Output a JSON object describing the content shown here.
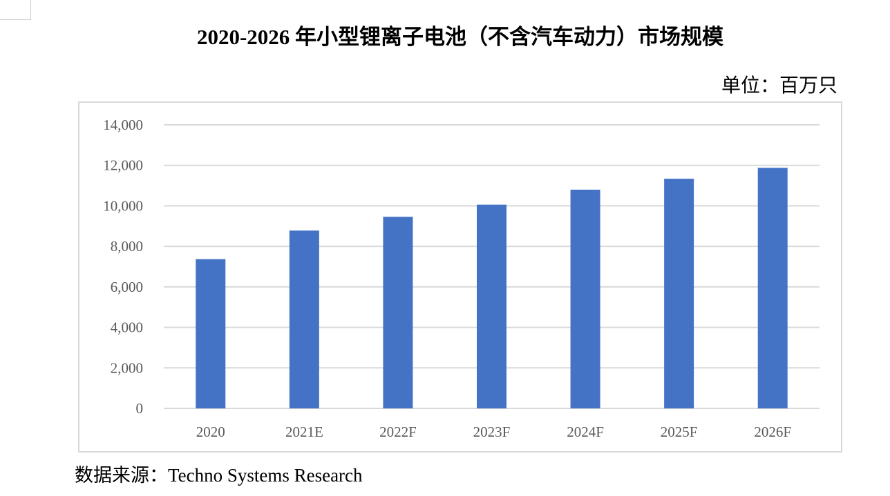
{
  "chart_data": {
    "type": "bar",
    "title": "2020-2026 年小型锂离子电池（不含汽车动力）市场规模",
    "unit_label": "单位：百万只",
    "categories": [
      "2020",
      "2021E",
      "2022F",
      "2023F",
      "2024F",
      "2025F",
      "2026F"
    ],
    "values": [
      7370,
      8780,
      9460,
      10060,
      10800,
      11340,
      11880
    ],
    "ylim": [
      0,
      14000
    ],
    "yticks": [
      0,
      2000,
      4000,
      6000,
      8000,
      10000,
      12000,
      14000
    ],
    "ytick_labels": [
      "0",
      "2,000",
      "4,000",
      "6,000",
      "8,000",
      "10,000",
      "12,000",
      "14,000"
    ],
    "grid": true,
    "xlabel": "",
    "ylabel": "",
    "bar_color": "#4472C4",
    "source": "数据来源：Techno Systems Research"
  }
}
